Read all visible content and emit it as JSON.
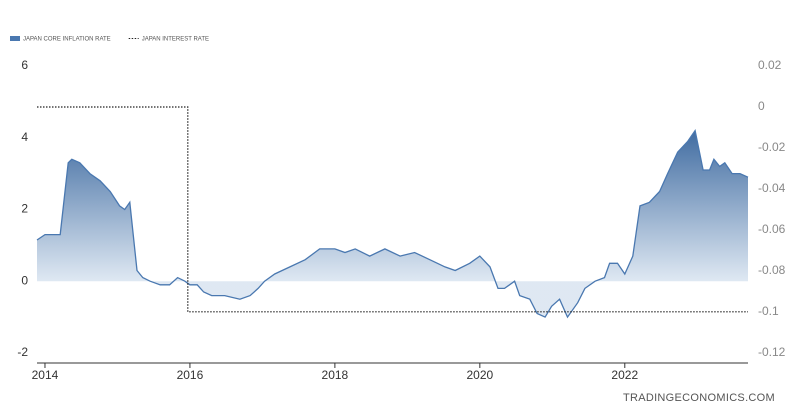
{
  "chart_data": {
    "type": "line",
    "x": [
      2013.89,
      2014.0,
      2014.21,
      2014.32,
      2014.37,
      2014.48,
      2014.62,
      2014.76,
      2014.9,
      2015.03,
      2015.1,
      2015.17,
      2015.27,
      2015.35,
      2015.45,
      2015.59,
      2015.72,
      2015.83,
      2015.93,
      2016.0,
      2016.1,
      2016.19,
      2016.3,
      2016.48,
      2016.69,
      2016.83,
      2016.94,
      2017.03,
      2017.17,
      2017.38,
      2017.59,
      2017.79,
      2018.0,
      2018.14,
      2018.28,
      2018.48,
      2018.69,
      2018.9,
      2019.1,
      2019.31,
      2019.52,
      2019.66,
      2019.86,
      2020.0,
      2020.14,
      2020.25,
      2020.34,
      2020.48,
      2020.55,
      2020.69,
      2020.79,
      2020.9,
      2020.99,
      2021.1,
      2021.21,
      2021.35,
      2021.45,
      2021.59,
      2021.72,
      2021.79,
      2021.9,
      2022.0,
      2022.11,
      2022.21,
      2022.34,
      2022.48,
      2022.59,
      2022.73,
      2022.87,
      2022.97,
      2023.08,
      2023.17,
      2023.23,
      2023.31,
      2023.38,
      2023.48,
      2023.59,
      2023.7
    ],
    "series": [
      {
        "name": "JAPAN CORE INFLATION RATE",
        "color": "#4a78b0",
        "area": true,
        "values": [
          1.15,
          1.3,
          1.3,
          3.3,
          3.4,
          3.3,
          3.0,
          2.8,
          2.5,
          2.1,
          2.0,
          2.2,
          0.3,
          0.1,
          0.0,
          -0.1,
          -0.1,
          0.1,
          0.0,
          -0.1,
          -0.1,
          -0.3,
          -0.4,
          -0.4,
          -0.5,
          -0.4,
          -0.2,
          0.0,
          0.2,
          0.4,
          0.6,
          0.9,
          0.9,
          0.8,
          0.9,
          0.7,
          0.9,
          0.7,
          0.8,
          0.6,
          0.4,
          0.3,
          0.5,
          0.7,
          0.4,
          -0.2,
          -0.2,
          0.0,
          -0.4,
          -0.5,
          -0.9,
          -1.0,
          -0.7,
          -0.5,
          -1.0,
          -0.6,
          -0.2,
          0.0,
          0.1,
          0.5,
          0.5,
          0.2,
          0.7,
          2.1,
          2.2,
          2.5,
          3.0,
          3.6,
          3.9,
          4.2,
          3.1,
          3.1,
          3.4,
          3.2,
          3.3,
          3.0,
          3.0,
          2.9
        ]
      },
      {
        "name": "JAPAN INTEREST RATE",
        "color": "#222222",
        "axis": "y2",
        "dashed": true,
        "x": [
          2013.89,
          2015.97,
          2015.97,
          2023.7
        ],
        "values": [
          0,
          0,
          -0.1,
          -0.1
        ]
      }
    ],
    "xlim": [
      2013.89,
      2023.7
    ],
    "xticks": [
      2014,
      2016,
      2018,
      2020,
      2022
    ],
    "ylim": [
      -2.28,
      6
    ],
    "yticks": [
      -2,
      0,
      2,
      4,
      6
    ],
    "y2lim": [
      -0.125,
      0.02
    ],
    "y2ticks": [
      0.02,
      0,
      -0.02,
      -0.04,
      -0.06,
      -0.08,
      -0.1,
      -0.12
    ],
    "grid": false,
    "legend": "top-left",
    "watermark": "TRADINGECONOMICS.COM"
  }
}
